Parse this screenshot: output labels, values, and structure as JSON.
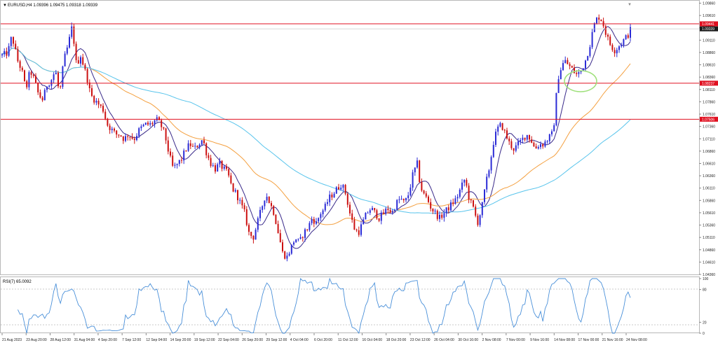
{
  "window": {
    "symbol_info": "EURUSD,H4 1.09396 1.09475 1.09318 1.09339",
    "rsi_info": "RSI(7) 65.0092"
  },
  "colors": {
    "bull": "#2b2bd6",
    "bear": "#cc1111",
    "ma_fast": "#3a2a8a",
    "ma_mid": "#f4a040",
    "ma_slow": "#58c4ec",
    "hline": "#e01020",
    "rsi": "#4a90d9",
    "highlight": "#9ee07a",
    "price_tag_bg": "#e01020",
    "current_tag_bg": "#1a1a1a"
  },
  "chart_data": [
    {
      "type": "candlestick",
      "title": "EURUSD,H4",
      "ylim": [
        1.0436,
        1.0986
      ],
      "y_ticks": [
        "1.09860",
        "1.09610",
        "1.09360",
        "1.09110",
        "1.08860",
        "1.08610",
        "1.08360",
        "1.08110",
        "1.07860",
        "1.07610",
        "1.07360",
        "1.07110",
        "1.06860",
        "1.06610",
        "1.06360",
        "1.06110",
        "1.05860",
        "1.05610",
        "1.05360",
        "1.05110",
        "1.04860",
        "1.04610",
        "1.04360"
      ],
      "x_ticks": [
        "21 Aug 2023",
        "23 Aug 20:00",
        "28 Aug 12:00",
        "31 Aug 04:00",
        "4 Sep 20:00",
        "7 Sep 12:00",
        "12 Sep 04:00",
        "14 Sep 20:00",
        "19 Sep 12:00",
        "22 Sep 04:00",
        "26 Sep 20:00",
        "29 Sep 12:00",
        "4 Oct 04:00",
        "6 Oct 20:00",
        "11 Oct 12:00",
        "16 Oct 04:00",
        "18 Oct 20:00",
        "23 Oct 12:00",
        "26 Oct 04:00",
        "30 Oct 16:00",
        "2 Nov 08:00",
        "7 Nov 00:00",
        "9 Nov 16:00",
        "14 Nov 08:00",
        "17 Nov 00:00",
        "21 Nov 16:00",
        "24 Nov 08:00"
      ],
      "price_levels": [
        {
          "value": 1.09441,
          "label": "1.09441"
        },
        {
          "value": 1.08237,
          "label": "1.08237"
        },
        {
          "value": 1.07506,
          "label": "1.07506"
        }
      ],
      "current_price": {
        "value": 1.09339,
        "label": "1.09339"
      },
      "close_path": [
        [
          0,
          1.088
        ],
        [
          8,
          1.0885
        ],
        [
          14,
          1.092
        ],
        [
          22,
          1.087
        ],
        [
          28,
          1.085
        ],
        [
          34,
          1.081
        ],
        [
          40,
          1.085
        ],
        [
          46,
          1.083
        ],
        [
          52,
          1.08
        ],
        [
          58,
          1.079
        ],
        [
          64,
          1.082
        ],
        [
          70,
          1.083
        ],
        [
          76,
          1.085
        ],
        [
          82,
          1.08
        ],
        [
          88,
          1.087
        ],
        [
          94,
          1.09
        ],
        [
          100,
          1.094
        ],
        [
          106,
          1.086
        ],
        [
          112,
          1.088
        ],
        [
          118,
          1.085
        ],
        [
          122,
          1.083
        ],
        [
          126,
          1.08
        ],
        [
          132,
          1.079
        ],
        [
          138,
          1.078
        ],
        [
          144,
          1.077
        ],
        [
          150,
          1.074
        ],
        [
          156,
          1.073
        ],
        [
          162,
          1.072
        ],
        [
          168,
          1.072
        ],
        [
          174,
          1.071
        ],
        [
          180,
          1.072
        ],
        [
          188,
          1.071
        ],
        [
          196,
          1.073
        ],
        [
          204,
          1.074
        ],
        [
          212,
          1.074
        ],
        [
          220,
          1.075
        ],
        [
          226,
          1.074
        ],
        [
          232,
          1.072
        ],
        [
          238,
          1.068
        ],
        [
          244,
          1.065
        ],
        [
          250,
          1.066
        ],
        [
          256,
          1.067
        ],
        [
          262,
          1.069
        ],
        [
          268,
          1.07
        ],
        [
          274,
          1.069
        ],
        [
          280,
          1.07
        ],
        [
          286,
          1.071
        ],
        [
          292,
          1.068
        ],
        [
          298,
          1.066
        ],
        [
          304,
          1.065
        ],
        [
          310,
          1.066
        ],
        [
          316,
          1.065
        ],
        [
          322,
          1.064
        ],
        [
          328,
          1.061
        ],
        [
          334,
          1.06
        ],
        [
          340,
          1.058
        ],
        [
          346,
          1.056
        ],
        [
          352,
          1.052
        ],
        [
          358,
          1.051
        ],
        [
          364,
          1.054
        ],
        [
          370,
          1.057
        ],
        [
          376,
          1.06
        ],
        [
          382,
          1.058
        ],
        [
          388,
          1.056
        ],
        [
          394,
          1.052
        ],
        [
          400,
          1.048
        ],
        [
          406,
          1.047
        ],
        [
          412,
          1.049
        ],
        [
          418,
          1.051
        ],
        [
          424,
          1.05
        ],
        [
          430,
          1.052
        ],
        [
          436,
          1.053
        ],
        [
          442,
          1.055
        ],
        [
          448,
          1.054
        ],
        [
          454,
          1.056
        ],
        [
          460,
          1.057
        ],
        [
          466,
          1.059
        ],
        [
          472,
          1.06
        ],
        [
          478,
          1.061
        ],
        [
          484,
          1.062
        ],
        [
          490,
          1.06
        ],
        [
          496,
          1.056
        ],
        [
          502,
          1.053
        ],
        [
          508,
          1.052
        ],
        [
          514,
          1.054
        ],
        [
          520,
          1.056
        ],
        [
          526,
          1.057
        ],
        [
          532,
          1.056
        ],
        [
          538,
          1.055
        ],
        [
          544,
          1.056
        ],
        [
          550,
          1.057
        ],
        [
          556,
          1.056
        ],
        [
          562,
          1.058
        ],
        [
          568,
          1.059
        ],
        [
          574,
          1.058
        ],
        [
          580,
          1.06
        ],
        [
          586,
          1.064
        ],
        [
          592,
          1.066
        ],
        [
          596,
          1.062
        ],
        [
          600,
          1.06
        ],
        [
          606,
          1.059
        ],
        [
          612,
          1.057
        ],
        [
          618,
          1.056
        ],
        [
          624,
          1.055
        ],
        [
          630,
          1.056
        ],
        [
          636,
          1.057
        ],
        [
          642,
          1.058
        ],
        [
          648,
          1.059
        ],
        [
          654,
          1.061
        ],
        [
          660,
          1.063
        ],
        [
          666,
          1.059
        ],
        [
          672,
          1.057
        ],
        [
          678,
          1.054
        ],
        [
          684,
          1.057
        ],
        [
          690,
          1.062
        ],
        [
          696,
          1.066
        ],
        [
          700,
          1.07
        ],
        [
          706,
          1.073
        ],
        [
          712,
          1.074
        ],
        [
          718,
          1.072
        ],
        [
          724,
          1.07
        ],
        [
          730,
          1.069
        ],
        [
          736,
          1.07
        ],
        [
          742,
          1.071
        ],
        [
          748,
          1.072
        ],
        [
          754,
          1.071
        ],
        [
          760,
          1.069
        ],
        [
          766,
          1.07
        ],
        [
          772,
          1.07
        ],
        [
          778,
          1.071
        ],
        [
          784,
          1.072
        ],
        [
          788,
          1.075
        ],
        [
          792,
          1.083
        ],
        [
          796,
          1.085
        ],
        [
          802,
          1.087
        ],
        [
          808,
          1.086
        ],
        [
          814,
          1.085
        ],
        [
          820,
          1.084
        ],
        [
          826,
          1.085
        ],
        [
          832,
          1.087
        ],
        [
          838,
          1.09
        ],
        [
          844,
          1.094
        ],
        [
          850,
          1.096
        ],
        [
          856,
          1.095
        ],
        [
          862,
          1.092
        ],
        [
          868,
          1.09
        ],
        [
          874,
          1.089
        ],
        [
          880,
          1.09
        ],
        [
          886,
          1.091
        ],
        [
          892,
          1.092
        ],
        [
          897,
          1.0934
        ]
      ]
    },
    {
      "type": "line",
      "title": "RSI(7) 65.0092",
      "ylim": [
        0,
        100
      ],
      "y_ticks": [
        "100",
        "80",
        "20",
        "0"
      ],
      "levels": [
        80,
        20
      ],
      "current_value": 65.0092
    }
  ]
}
